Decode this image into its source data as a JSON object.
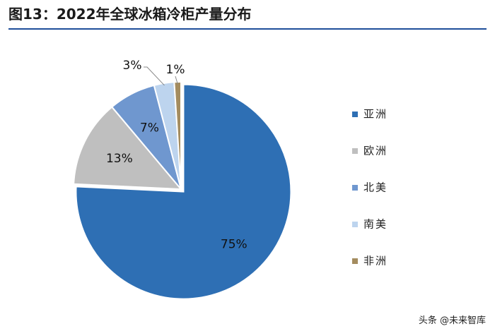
{
  "title": "图13：2022年全球冰箱冷柜产量分布",
  "watermark": "头条 @未来智库",
  "chart_data": {
    "type": "pie",
    "title": "图13：2022年全球冰箱冷柜产量分布",
    "legend_position": "right",
    "start_angle_deg": 0,
    "direction": "clockwise",
    "slices": [
      {
        "name": "亚洲",
        "value": 75,
        "label": "75%",
        "color": "#2e6fb4"
      },
      {
        "name": "欧洲",
        "value": 13,
        "label": "13%",
        "color": "#bfbfbf"
      },
      {
        "name": "北美",
        "value": 7,
        "label": "7%",
        "color": "#6f97cf"
      },
      {
        "name": "南美",
        "value": 3,
        "label": "3%",
        "color": "#bdd4ee"
      },
      {
        "name": "非洲",
        "value": 1,
        "label": "1%",
        "color": "#a48c5f"
      }
    ]
  }
}
